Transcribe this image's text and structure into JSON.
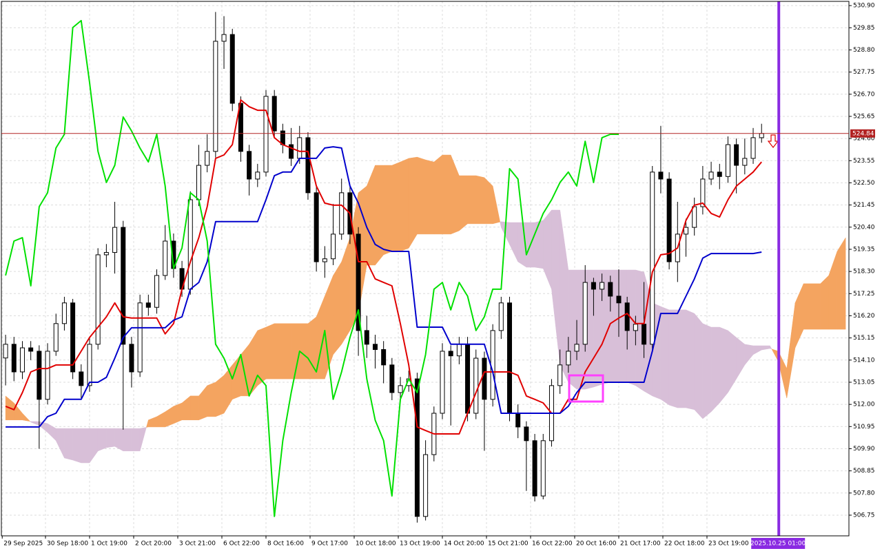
{
  "chart_data": {
    "type": "candlestick",
    "xlim": [
      -0.5,
      100.4
    ],
    "ylim": [
      505.77,
      531.1
    ],
    "grid": true,
    "yticks": [
      {
        "value": 530.9,
        "label": "530.90"
      },
      529.85,
      {
        "value": 528.8,
        "label": "528.80"
      },
      527.75,
      {
        "value": 526.7,
        "label": "526.70"
      },
      525.65,
      {
        "value": 524.6,
        "label": "524.60"
      },
      523.55,
      {
        "value": 522.5,
        "label": "522.50"
      },
      521.45,
      {
        "value": 520.4,
        "label": "520.40"
      },
      519.35,
      {
        "value": 518.3,
        "label": "518.30"
      },
      517.25,
      {
        "value": 516.2,
        "label": "516.20"
      },
      515.15,
      {
        "value": 514.1,
        "label": "514.10"
      },
      513.05,
      {
        "value": 512,
        "label": "512.00"
      },
      510.95,
      {
        "value": 509.9,
        "label": "509.90"
      },
      508.85,
      {
        "value": 507.8,
        "label": "507.80"
      },
      506.75
    ],
    "xticks": [
      {
        "value": -0.4,
        "label": "29 Sep 2025"
      },
      {
        "value": 4.75,
        "label": "30 Sep 18:00"
      },
      {
        "value": 10,
        "label": "1 Oct 19:00"
      },
      {
        "value": 15.25,
        "label": "2 Oct 20:00"
      },
      {
        "value": 20.5,
        "label": "3 Oct 21:00"
      },
      {
        "value": 25.75,
        "label": "6 Oct 22:00"
      },
      {
        "value": 31,
        "label": "8 Oct 16:00"
      },
      {
        "value": 36.25,
        "label": "9 Oct 17:00"
      },
      {
        "value": 41.5,
        "label": "10 Oct 18:00"
      },
      {
        "value": 46.75,
        "label": "13 Oct 19:00"
      },
      {
        "value": 52,
        "label": "14 Oct 20:00"
      },
      {
        "value": 57.25,
        "label": "15 Oct 21:00"
      },
      {
        "value": 62.5,
        "label": "16 Oct 22:00"
      },
      {
        "value": 67.75,
        "label": "20 Oct 16:00"
      },
      {
        "value": 73,
        "label": "21 Oct 17:00"
      },
      {
        "value": 78.25,
        "label": "22 Oct 18:00"
      },
      {
        "value": 83.5,
        "label": "23 Oct 19:00"
      }
    ],
    "candles": {
      "up_color": "#ffffff",
      "down_color": "#000000",
      "open": [
        514.2,
        514.85,
        513.54,
        514.68,
        514.52,
        512.24,
        514.52,
        515.83,
        516.81,
        513.54,
        512.89,
        514.85,
        519.09,
        519.2,
        520.39,
        514.85,
        513.54,
        516.81,
        516.6,
        518.11,
        519.74,
        518.44,
        517.46,
        521.7,
        523.33,
        523.99,
        529.21,
        529.53,
        526.27,
        523.99,
        522.68,
        523.01,
        526.6,
        524.96,
        524.31,
        523.66,
        524.64,
        522.03,
        518.76,
        518.9,
        520.07,
        522.03,
        520.07,
        515.5,
        514.85,
        514.6,
        513.87,
        512.56,
        512.89,
        513.21,
        506.69,
        509.62,
        511.58,
        514.52,
        514.3,
        514.85,
        511.58,
        514.19,
        512.24,
        515.5,
        516.81,
        511.58,
        510.93,
        510.28,
        507.66,
        510.28,
        512.89,
        513.87,
        514.52,
        514.85,
        517.78,
        517.46,
        517.78,
        517.13,
        516.81,
        515.5,
        515.8,
        514.85,
        523.01,
        522.68,
        518.76,
        520.07,
        520.39,
        521.37,
        522.68,
        523.01,
        522.8,
        524.31,
        523.33,
        523.66,
        524.64,
        null,
        null,
        null,
        null,
        null,
        null,
        null,
        null,
        null,
        null
      ],
      "high": [
        515.3,
        515.2,
        515.0,
        515.0,
        514.8,
        514.9,
        516.3,
        517.1,
        517.0,
        513.9,
        515.2,
        519.4,
        519.6,
        521.6,
        520.7,
        515.2,
        517.2,
        517.2,
        518.4,
        520.5,
        520.1,
        518.8,
        522.1,
        524.3,
        524.8,
        530.6,
        530.4,
        529.8,
        526.6,
        524.3,
        523.4,
        526.9,
        526.9,
        525.3,
        525.1,
        525.2,
        524.9,
        522.3,
        519.5,
        521.5,
        522.7,
        522.4,
        520.4,
        516.2,
        515.3,
        515.0,
        514.2,
        513.3,
        513.6,
        513.5,
        510.3,
        511.9,
        514.9,
        514.8,
        515.2,
        515.2,
        514.6,
        514.5,
        515.8,
        517.1,
        517.1,
        512.0,
        511.2,
        510.6,
        510.6,
        513.2,
        514.6,
        515.2,
        516.0,
        518.6,
        518.0,
        518.2,
        518.1,
        518.4,
        517.1,
        516.2,
        517.8,
        523.3,
        525.2,
        523.0,
        521.6,
        520.8,
        521.8,
        523.3,
        523.5,
        523.4,
        524.7,
        524.6,
        524.6,
        525.1,
        525.3,
        null,
        null,
        null,
        null,
        null,
        null,
        null,
        null,
        null,
        null
      ],
      "low": [
        512.9,
        513.1,
        513.2,
        514.1,
        509.9,
        512.0,
        514.3,
        515.5,
        513.2,
        512.3,
        512.6,
        514.6,
        518.5,
        518.2,
        510.8,
        512.8,
        513.3,
        516.2,
        516.3,
        517.9,
        518.0,
        517.1,
        517.2,
        521.4,
        523.0,
        523.7,
        527.9,
        525.9,
        523.5,
        521.9,
        522.3,
        522.8,
        524.6,
        523.9,
        523.3,
        523.4,
        521.7,
        518.3,
        518.0,
        518.6,
        519.8,
        519.6,
        514.3,
        514.2,
        513.7,
        513.0,
        512.2,
        512.1,
        512.6,
        506.4,
        506.5,
        509.3,
        511.3,
        511.0,
        513.9,
        511.2,
        511.3,
        509.8,
        511.9,
        515.1,
        511.2,
        510.4,
        507.9,
        507.4,
        507.5,
        510.0,
        512.5,
        513.5,
        514.1,
        514.5,
        516.2,
        516.9,
        516.4,
        515.2,
        514.6,
        514.8,
        514.2,
        514.6,
        522.0,
        518.4,
        517.8,
        519.0,
        520.0,
        521.0,
        522.4,
        522.2,
        522.5,
        522.0,
        522.9,
        523.4,
        524.4,
        null,
        null,
        null,
        null,
        null,
        null,
        null,
        null,
        null,
        null
      ],
      "close": [
        514.85,
        513.54,
        514.68,
        514.52,
        512.24,
        514.52,
        515.83,
        516.81,
        513.54,
        512.89,
        514.85,
        519.09,
        519.2,
        520.39,
        514.85,
        513.54,
        516.81,
        516.6,
        518.11,
        519.74,
        518.44,
        517.46,
        521.7,
        523.33,
        523.99,
        529.21,
        529.53,
        526.27,
        523.99,
        522.68,
        523.01,
        526.6,
        524.96,
        524.31,
        523.66,
        524.64,
        522.03,
        518.76,
        518.9,
        520.07,
        522.03,
        520.07,
        515.5,
        514.85,
        514.6,
        513.87,
        512.56,
        512.89,
        513.21,
        506.69,
        509.62,
        511.58,
        514.52,
        514.3,
        514.85,
        511.58,
        514.19,
        512.24,
        515.5,
        516.81,
        511.58,
        510.93,
        510.28,
        507.66,
        510.28,
        512.89,
        513.87,
        514.52,
        514.85,
        517.78,
        517.46,
        517.78,
        517.13,
        516.81,
        515.5,
        515.8,
        514.85,
        523.01,
        522.68,
        518.76,
        520.07,
        520.39,
        521.37,
        522.68,
        523.01,
        522.8,
        524.31,
        523.33,
        523.66,
        524.64,
        524.84,
        null,
        null,
        null,
        null,
        null,
        null,
        null,
        null,
        null,
        null
      ]
    },
    "cloud": {
      "up_color": "#f4a460",
      "down_color": "#d8bfd8",
      "span_a": [
        512.4,
        512.07,
        511.58,
        511.16,
        511.0,
        510.67,
        510.28,
        509.46,
        509.36,
        509.23,
        509.23,
        509.79,
        509.95,
        510.01,
        509.79,
        509.79,
        509.79,
        511.26,
        511.42,
        511.65,
        511.91,
        512.07,
        512.4,
        512.4,
        512.89,
        513.05,
        513.38,
        513.87,
        514.36,
        514.85,
        515.5,
        515.66,
        515.83,
        515.83,
        515.83,
        515.83,
        515.83,
        516.15,
        517.13,
        518.11,
        518.76,
        519.9,
        522.03,
        522.35,
        523.33,
        523.33,
        523.33,
        523.49,
        523.66,
        523.72,
        523.59,
        523.49,
        523.82,
        523.82,
        522.84,
        522.84,
        522.84,
        522.75,
        522.35,
        520.39,
        519.58,
        518.76,
        518.5,
        518.5,
        518.44,
        517.46,
        513.87,
        513.05,
        512.72,
        512.72,
        512.82,
        512.95,
        513.05,
        513.05,
        513.05,
        512.89,
        512.63,
        512.4,
        512.24,
        511.97,
        511.84,
        511.84,
        511.75,
        511.32,
        511.65,
        512.07,
        512.56,
        513.21,
        513.87,
        514.36,
        514.58,
        514.65,
        514.52,
        513.7,
        516.81,
        517.72,
        517.72,
        517.72,
        518.11,
        519.25,
        519.9
      ],
      "span_b": [
        511.26,
        511.26,
        511.26,
        511.19,
        511.19,
        511.09,
        510.86,
        510.86,
        510.86,
        510.86,
        510.86,
        510.86,
        510.86,
        510.86,
        510.86,
        510.86,
        510.86,
        510.93,
        510.93,
        510.93,
        511.09,
        511.26,
        511.26,
        511.26,
        511.42,
        511.42,
        511.58,
        512.24,
        512.4,
        512.4,
        512.89,
        513.21,
        513.21,
        513.21,
        513.21,
        513.21,
        513.21,
        513.21,
        513.21,
        514.36,
        514.85,
        515.5,
        516.31,
        518.6,
        518.6,
        519.09,
        519.25,
        519.25,
        519.41,
        520.07,
        520.07,
        520.07,
        520.07,
        520.07,
        520.23,
        520.56,
        520.56,
        520.56,
        520.56,
        520.66,
        520.62,
        520.62,
        520.62,
        520.62,
        520.72,
        521.21,
        521.21,
        518.37,
        518.37,
        518.37,
        518.37,
        518.37,
        518.37,
        518.37,
        518.37,
        518.37,
        518.27,
        516.81,
        516.64,
        516.48,
        516.48,
        516.48,
        516.31,
        515.83,
        515.66,
        515.66,
        515.5,
        515.17,
        514.85,
        514.78,
        514.78,
        514.78,
        514.03,
        512.3,
        514.68,
        515.56,
        515.56,
        515.56,
        515.56,
        515.56,
        515.56
      ]
    },
    "series": [
      {
        "color": "#e00000",
        "values": [
          511.91,
          511.75,
          512.56,
          513.54,
          513.7,
          513.7,
          513.87,
          513.87,
          513.87,
          514.52,
          515.17,
          515.66,
          516.15,
          516.81,
          516.15,
          516.09,
          516.09,
          516.09,
          516.09,
          515.34,
          515.83,
          517.46,
          518.76,
          519.9,
          521.37,
          523.66,
          523.82,
          524.31,
          526.43,
          526.11,
          525.94,
          525.94,
          524.64,
          524.31,
          524.15,
          523.99,
          523.99,
          522.35,
          521.54,
          521.44,
          521.44,
          521.05,
          518.76,
          518.76,
          517.95,
          517.78,
          517.62,
          515.83,
          513.87,
          510.93,
          510.76,
          510.6,
          510.6,
          510.6,
          510.6,
          511.58,
          512.56,
          513.54,
          513.54,
          513.54,
          513.54,
          513.38,
          512.4,
          512.24,
          512.07,
          511.58,
          511.58,
          512.24,
          512.24,
          513.54,
          514.19,
          514.85,
          515.83,
          516.09,
          516.31,
          515.83,
          515.83,
          518.27,
          519.09,
          519.15,
          519.41,
          520.72,
          521.44,
          521.54,
          521.05,
          520.88,
          521.7,
          522.35,
          522.68,
          523.01,
          523.49,
          null,
          null,
          null,
          null,
          null,
          null,
          null,
          null,
          null,
          null
        ]
      },
      {
        "color": "#0000cc",
        "values": [
          510.93,
          510.93,
          510.93,
          510.93,
          510.93,
          511.42,
          511.58,
          512.24,
          512.24,
          512.24,
          513.05,
          513.05,
          513.28,
          514.19,
          515.17,
          515.63,
          515.63,
          515.63,
          515.63,
          515.63,
          515.99,
          516.15,
          517.46,
          517.78,
          518.76,
          520.66,
          520.66,
          520.66,
          520.66,
          520.66,
          520.66,
          521.7,
          522.84,
          523.01,
          523.01,
          523.66,
          523.66,
          523.66,
          524.15,
          524.21,
          524.15,
          522.35,
          521.54,
          520.39,
          519.58,
          519.35,
          519.25,
          519.25,
          519.25,
          515.66,
          515.66,
          515.66,
          515.66,
          514.85,
          514.85,
          514.85,
          514.85,
          514.85,
          513.54,
          511.58,
          511.58,
          511.58,
          511.58,
          511.58,
          511.58,
          511.58,
          511.58,
          511.91,
          512.56,
          513.05,
          513.05,
          513.05,
          513.05,
          513.05,
          513.05,
          513.05,
          513.05,
          514.52,
          516.31,
          516.31,
          516.31,
          517.13,
          517.95,
          518.93,
          519.15,
          519.15,
          519.15,
          519.15,
          519.15,
          519.15,
          519.22,
          null,
          null,
          null,
          null,
          null,
          null,
          null,
          null,
          null,
          null
        ]
      },
      {
        "color": "#00e000",
        "values": [
          518.11,
          519.74,
          519.9,
          517.62,
          521.37,
          522.03,
          524.15,
          524.8,
          529.86,
          530.19,
          527.25,
          523.99,
          522.52,
          523.33,
          525.62,
          524.96,
          524.15,
          523.49,
          524.8,
          522.35,
          518.44,
          519.41,
          522.03,
          521.7,
          519.74,
          514.85,
          514.19,
          513.21,
          514.36,
          512.4,
          513.38,
          512.89,
          506.69,
          510.28,
          512.56,
          514.52,
          514.19,
          513.54,
          515.5,
          512.24,
          513.54,
          515.17,
          516.48,
          513.21,
          511.25,
          510.28,
          507.66,
          512.24,
          513.21,
          512.56,
          514.36,
          517.46,
          517.78,
          516.48,
          517.78,
          517.13,
          515.5,
          516.15,
          517.46,
          517.46,
          523.17,
          522.68,
          519.09,
          520.07,
          521.05,
          521.7,
          522.52,
          523.01,
          522.35,
          524.47,
          522.52,
          524.64,
          524.8,
          524.8,
          null,
          null,
          null,
          null,
          null,
          null,
          null,
          null,
          null,
          null,
          null,
          null,
          null,
          null,
          null,
          null,
          null,
          null,
          null,
          null,
          null,
          null,
          null,
          null,
          null,
          null,
          null
        ]
      }
    ],
    "price_line": {
      "value": 524.84,
      "color": "#b22222"
    },
    "time_marker": {
      "x": 92.05,
      "label": "2025.10.25 01:00",
      "color": "#8a2be2"
    }
  }
}
